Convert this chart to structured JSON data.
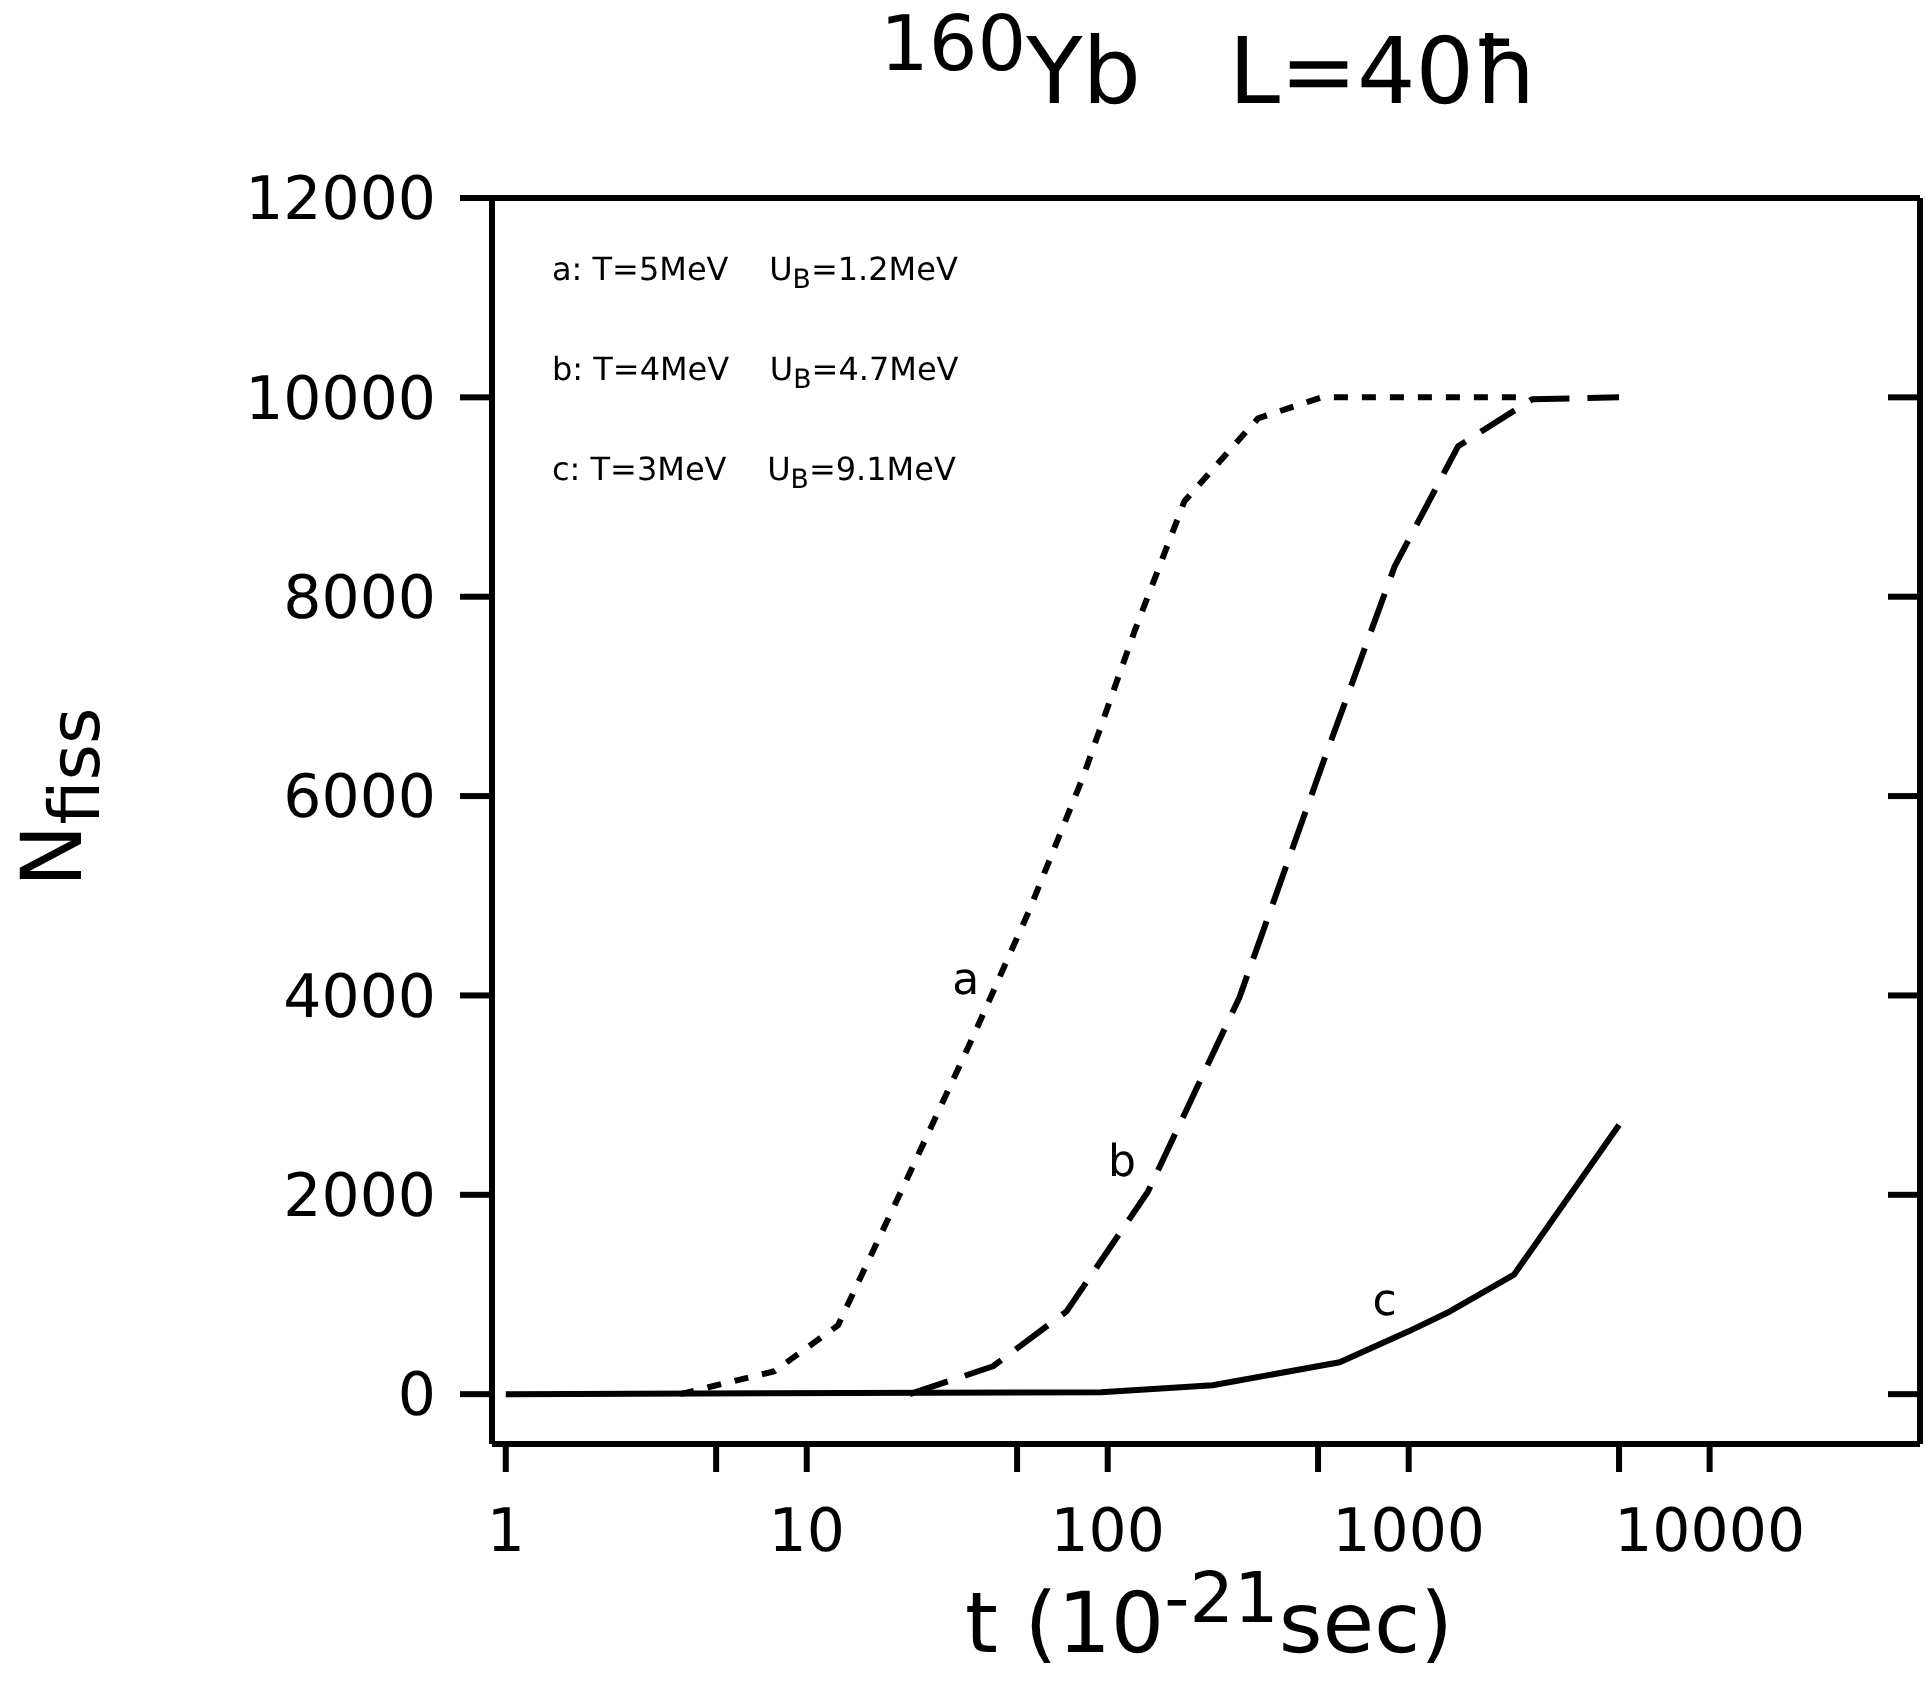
{
  "chart_data": {
    "type": "line",
    "title": "$^{160}$Yb   L=40ħ",
    "xlabel": "t (10$^{-21}$sec)",
    "ylabel": "N$_{fiss}$",
    "log": "x",
    "grid": false,
    "marker": "none",
    "xlim": [
      0.9,
      50000
    ],
    "xticks": [
      1,
      {
        "value": 5,
        "label": null
      },
      10,
      {
        "value": 50,
        "label": null
      },
      100,
      {
        "value": 500,
        "label": null
      },
      1000,
      {
        "value": 5000,
        "label": null
      },
      10000
    ],
    "ylim": [
      -500,
      12000
    ],
    "yticks": [
      0,
      2000,
      4000,
      6000,
      8000,
      10000,
      12000
    ],
    "series": [
      {
        "color": "#000000",
        "line_style": "dotted",
        "x": [
          3.8,
          7.8,
          12.7,
          22,
          36,
          55,
          83,
          123,
          180,
          316,
          513,
          1000,
          2500
        ],
        "values": [
          0,
          230,
          690,
          2220,
          3610,
          4860,
          6200,
          7660,
          8960,
          9790,
          10000,
          10000,
          10000
        ]
      },
      {
        "color": "#000000",
        "line_style": "dashed",
        "x": [
          22,
          41.6,
          73,
          136,
          274,
          513,
          900,
          1460,
          2570,
          5000
        ],
        "values": [
          0,
          280,
          830,
          2030,
          3980,
          6290,
          8310,
          9510,
          9980,
          10000
        ]
      },
      {
        "color": "#000000",
        "line_style": "solid",
        "x": [
          1,
          95,
          223,
          590,
          1000,
          1370,
          2240,
          5000
        ],
        "values": [
          0,
          20,
          90,
          320,
          630,
          830,
          1200,
          2700
        ]
      }
    ],
    "annotations": [
      "a: T=5MeV    U$_{B}$=1.2MeV",
      "b: T=4MeV    U$_{B}$=4.7MeV",
      "c: T=3MeV    U$_{B}$=9.1MeV",
      {
        "text": "a",
        "x": 41,
        "y": 3850
      },
      {
        "text": "b",
        "x": 136,
        "y": 2030
      },
      {
        "text": "c",
        "x": 1000,
        "y": 630
      }
    ]
  }
}
